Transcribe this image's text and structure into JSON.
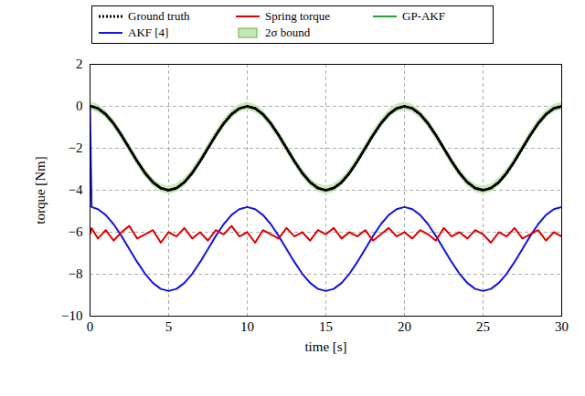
{
  "chart_data": {
    "type": "line",
    "x": [
      0,
      0.1,
      0.5,
      1,
      1.5,
      2,
      2.5,
      3,
      3.5,
      4,
      4.5,
      5,
      5.5,
      6,
      6.5,
      7,
      7.5,
      8,
      8.5,
      9,
      9.5,
      10,
      10.5,
      11,
      11.5,
      12,
      12.5,
      13,
      13.5,
      14,
      14.5,
      15,
      15.5,
      16,
      16.5,
      17,
      17.5,
      18,
      18.5,
      19,
      19.5,
      20,
      20.5,
      21,
      21.5,
      22,
      22.5,
      23,
      23.5,
      24,
      24.5,
      25,
      25.5,
      26,
      26.5,
      27,
      27.5,
      28,
      28.5,
      29,
      29.5,
      30
    ],
    "x_label": "time [s]",
    "y_label": "torque [Nm]",
    "xlim": [
      0,
      30
    ],
    "xticks": [
      0,
      5,
      10,
      15,
      20,
      25,
      30
    ],
    "ylim": [
      -10,
      2
    ],
    "yticks": [
      -10,
      -8,
      -6,
      -4,
      -2,
      0,
      2
    ],
    "grid": true,
    "legend": "top",
    "series": [
      {
        "name": "Ground truth",
        "color": "#000000",
        "type": "line",
        "line_style": "dotted",
        "values": [
          0,
          0,
          -0.1,
          -0.38,
          -0.82,
          -1.38,
          -2,
          -2.62,
          -3.18,
          -3.62,
          -3.9,
          -4,
          -3.9,
          -3.62,
          -3.18,
          -2.62,
          -2,
          -1.38,
          -0.82,
          -0.38,
          -0.1,
          0,
          -0.1,
          -0.38,
          -0.82,
          -1.38,
          -2,
          -2.62,
          -3.18,
          -3.62,
          -3.9,
          -4,
          -3.9,
          -3.62,
          -3.18,
          -2.62,
          -2,
          -1.38,
          -0.82,
          -0.38,
          -0.1,
          0,
          -0.1,
          -0.38,
          -0.82,
          -1.38,
          -2,
          -2.62,
          -3.18,
          -3.62,
          -3.9,
          -4,
          -3.9,
          -3.62,
          -3.18,
          -2.62,
          -2,
          -1.38,
          -0.82,
          -0.38,
          -0.1,
          0
        ]
      },
      {
        "name": "Spring torque",
        "color": "#e00000",
        "type": "line",
        "line_style": "solid",
        "values": [
          -6.1,
          -5.8,
          -6.3,
          -5.9,
          -6.4,
          -6.0,
          -5.7,
          -6.3,
          -6.1,
          -5.9,
          -6.5,
          -6.0,
          -6.2,
          -5.8,
          -6.3,
          -6.0,
          -6.4,
          -5.9,
          -6.1,
          -5.7,
          -6.2,
          -6.0,
          -6.5,
          -5.9,
          -6.1,
          -6.3,
          -5.8,
          -6.2,
          -6.0,
          -6.4,
          -5.9,
          -6.1,
          -5.8,
          -6.3,
          -6.0,
          -6.2,
          -5.9,
          -6.4,
          -6.1,
          -5.8,
          -6.2,
          -6.0,
          -6.3,
          -5.9,
          -6.1,
          -6.4,
          -5.8,
          -6.2,
          -6.0,
          -6.3,
          -5.9,
          -6.1,
          -6.5,
          -6.0,
          -6.2,
          -5.8,
          -6.3,
          -6.1,
          -5.9,
          -6.4,
          -6.0,
          -6.2
        ]
      },
      {
        "name": "GP-AKF",
        "color": "#22a03a",
        "type": "line",
        "line_style": "solid",
        "values": [
          0,
          0,
          -0.1,
          -0.38,
          -0.82,
          -1.38,
          -2,
          -2.62,
          -3.18,
          -3.62,
          -3.9,
          -4,
          -3.9,
          -3.62,
          -3.18,
          -2.62,
          -2,
          -1.38,
          -0.82,
          -0.38,
          -0.1,
          0,
          -0.1,
          -0.38,
          -0.82,
          -1.38,
          -2,
          -2.62,
          -3.18,
          -3.62,
          -3.9,
          -4,
          -3.9,
          -3.62,
          -3.18,
          -2.62,
          -2,
          -1.38,
          -0.82,
          -0.38,
          -0.1,
          0,
          -0.1,
          -0.38,
          -0.82,
          -1.38,
          -2,
          -2.62,
          -3.18,
          -3.62,
          -3.9,
          -4,
          -3.9,
          -3.62,
          -3.18,
          -2.62,
          -2,
          -1.38,
          -0.82,
          -0.38,
          -0.1,
          0
        ]
      },
      {
        "name": "AKF [4]",
        "color": "#1414e0",
        "type": "line",
        "line_style": "solid",
        "values": [
          0,
          -4.8,
          -4.9,
          -5.18,
          -5.62,
          -6.18,
          -6.8,
          -7.42,
          -7.98,
          -8.42,
          -8.7,
          -8.8,
          -8.7,
          -8.42,
          -7.98,
          -7.42,
          -6.8,
          -6.18,
          -5.62,
          -5.18,
          -4.9,
          -4.8,
          -4.9,
          -5.18,
          -5.62,
          -6.18,
          -6.8,
          -7.42,
          -7.98,
          -8.42,
          -8.7,
          -8.8,
          -8.7,
          -8.42,
          -7.98,
          -7.42,
          -6.8,
          -6.18,
          -5.62,
          -5.18,
          -4.9,
          -4.8,
          -4.9,
          -5.18,
          -5.62,
          -6.18,
          -6.8,
          -7.42,
          -7.98,
          -8.42,
          -8.7,
          -8.8,
          -8.7,
          -8.42,
          -7.98,
          -7.42,
          -6.8,
          -6.18,
          -5.62,
          -5.18,
          -4.9,
          -4.8
        ]
      },
      {
        "name": "2σ bound",
        "color": "#c6e8b4",
        "type": "area",
        "lower": [
          -0.2,
          -0.2,
          -0.3,
          -0.58,
          -1.02,
          -1.58,
          -2.2,
          -2.82,
          -3.38,
          -3.82,
          -4.1,
          -4.2,
          -4.1,
          -3.82,
          -3.38,
          -2.82,
          -2.2,
          -1.58,
          -1.02,
          -0.58,
          -0.3,
          -0.2,
          -0.3,
          -0.58,
          -1.02,
          -1.58,
          -2.2,
          -2.82,
          -3.38,
          -3.82,
          -4.1,
          -4.2,
          -4.1,
          -3.82,
          -3.38,
          -2.82,
          -2.2,
          -1.58,
          -1.02,
          -0.58,
          -0.3,
          -0.2,
          -0.3,
          -0.58,
          -1.02,
          -1.58,
          -2.2,
          -2.82,
          -3.38,
          -3.82,
          -4.1,
          -4.2,
          -4.1,
          -3.82,
          -3.38,
          -2.82,
          -2.2,
          -1.58,
          -1.02,
          -0.58,
          -0.3,
          -0.2
        ],
        "upper": [
          0.2,
          0.2,
          0.1,
          -0.18,
          -0.62,
          -1.18,
          -1.8,
          -2.42,
          -2.98,
          -3.42,
          -3.7,
          -3.8,
          -3.7,
          -3.42,
          -2.98,
          -2.42,
          -1.8,
          -1.18,
          -0.62,
          -0.18,
          0.1,
          0.2,
          0.1,
          -0.18,
          -0.62,
          -1.18,
          -1.8,
          -2.42,
          -2.98,
          -3.42,
          -3.7,
          -3.8,
          -3.7,
          -3.42,
          -2.98,
          -2.42,
          -1.8,
          -1.18,
          -0.62,
          -0.18,
          0.1,
          0.2,
          0.1,
          -0.18,
          -0.62,
          -1.18,
          -1.8,
          -2.42,
          -2.98,
          -3.42,
          -3.7,
          -3.8,
          -3.7,
          -3.42,
          -2.98,
          -2.42,
          -1.8,
          -1.18,
          -0.62,
          -0.18,
          0.1,
          0.2
        ]
      }
    ]
  }
}
